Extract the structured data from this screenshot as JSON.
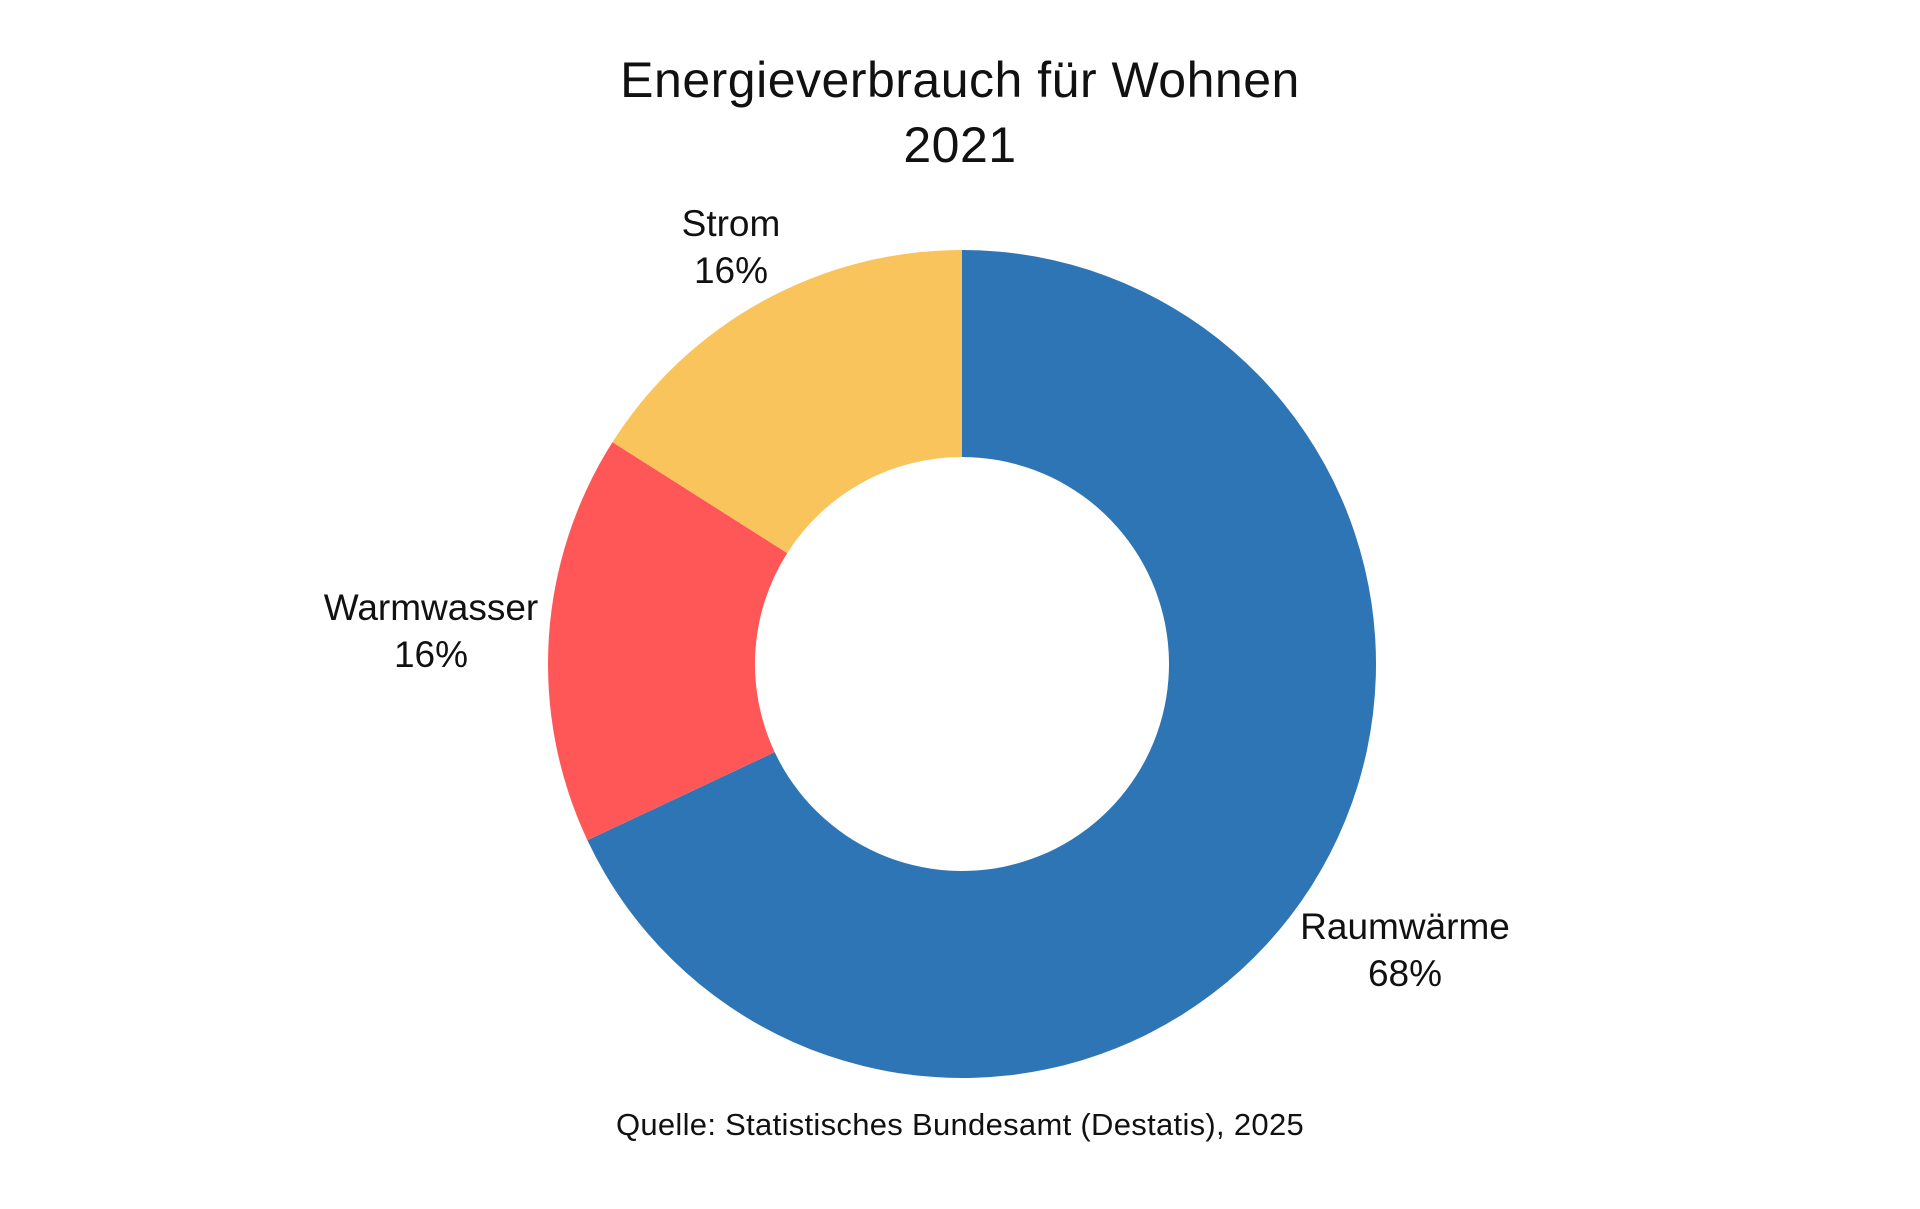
{
  "title": {
    "line1": "Energieverbrauch für Wohnen",
    "line2": "2021"
  },
  "chart_data": {
    "type": "pie",
    "variant": "donut",
    "title": "Energieverbrauch für Wohnen 2021",
    "segments": [
      {
        "label": "Raumwärme",
        "value": 68,
        "pct_label": "68%",
        "color": "#2E75B5",
        "slug": "raumwaerme"
      },
      {
        "label": "Warmwasser",
        "value": 16,
        "pct_label": "16%",
        "color": "#FF5757",
        "slug": "warmwasser"
      },
      {
        "label": "Strom",
        "value": 16,
        "pct_label": "16%",
        "color": "#FAC45D",
        "slug": "strom"
      }
    ],
    "start_angle_deg": 0,
    "direction": "clockwise",
    "inner_radius_ratio": 0.5,
    "hole_color": "#ffffff",
    "legend": "none",
    "labels_position": "outside"
  },
  "source": "Quelle: Statistisches Bundesamt (Destatis), 2025",
  "colors": {
    "background": "#ffffff",
    "text": "#111111"
  }
}
